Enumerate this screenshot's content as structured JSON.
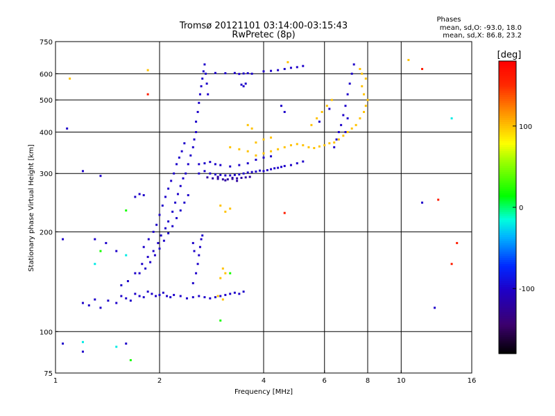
{
  "chart_data": {
    "type": "scatter",
    "title": "Tromsø 20121101 03:14:00-03:15:43",
    "subtitle": "RwPretec (8p)",
    "stats": {
      "heading": "Phases",
      "line_o": "mean, sd,O: -93.0, 18.0",
      "line_x": "mean, sd,X:  86.8, 23.2"
    },
    "xlabel": "Frequency [MHz]",
    "ylabel": "Stationary phase Virtual Height [km]",
    "x_scale": "log",
    "y_scale": "log",
    "xlim": [
      1,
      16
    ],
    "ylim": [
      75,
      750
    ],
    "x_ticks": [
      1,
      2,
      4,
      6,
      8,
      10,
      16
    ],
    "x_tick_labels": [
      "1",
      "2",
      "4",
      "6",
      "8",
      "10",
      "16"
    ],
    "y_ticks": [
      75,
      100,
      200,
      300,
      400,
      500,
      600,
      750
    ],
    "y_tick_labels": [
      "75",
      "100",
      "200",
      "300",
      "400",
      "500",
      "600",
      "750"
    ],
    "grid": true,
    "colorbar": {
      "label": "[deg]",
      "range": [
        -180,
        180
      ],
      "ticks": [
        100,
        0,
        -100
      ],
      "tick_labels": [
        "100",
        "0",
        "-100"
      ]
    },
    "series": [
      {
        "color_value": -100,
        "points": [
          [
            1.2,
            122
          ],
          [
            1.25,
            120
          ],
          [
            1.3,
            125
          ],
          [
            1.35,
            118
          ],
          [
            1.42,
            124
          ],
          [
            1.5,
            122
          ],
          [
            1.55,
            128
          ],
          [
            1.6,
            126
          ],
          [
            1.65,
            124
          ],
          [
            1.7,
            130
          ],
          [
            1.75,
            128
          ],
          [
            1.8,
            127
          ],
          [
            1.85,
            132
          ],
          [
            1.9,
            130
          ],
          [
            1.95,
            128
          ],
          [
            2.0,
            129
          ],
          [
            2.05,
            131
          ],
          [
            2.1,
            128
          ],
          [
            2.15,
            127
          ],
          [
            2.2,
            129
          ],
          [
            1.55,
            138
          ],
          [
            1.62,
            142
          ],
          [
            1.7,
            150
          ],
          [
            1.78,
            160
          ],
          [
            1.85,
            168
          ],
          [
            1.92,
            175
          ],
          [
            1.98,
            185
          ],
          [
            2.02,
            195
          ],
          [
            2.08,
            205
          ],
          [
            2.12,
            215
          ],
          [
            2.18,
            230
          ],
          [
            2.22,
            245
          ],
          [
            2.26,
            260
          ],
          [
            2.3,
            275
          ],
          [
            2.34,
            290
          ],
          [
            2.38,
            300
          ],
          [
            2.42,
            320
          ],
          [
            2.46,
            340
          ],
          [
            2.5,
            360
          ],
          [
            2.52,
            380
          ],
          [
            2.55,
            400
          ],
          [
            2.55,
            430
          ],
          [
            2.58,
            460
          ],
          [
            2.6,
            490
          ],
          [
            2.62,
            520
          ],
          [
            2.64,
            550
          ],
          [
            2.66,
            580
          ],
          [
            2.68,
            610
          ],
          [
            2.7,
            640
          ],
          [
            2.72,
            600
          ],
          [
            2.74,
            560
          ],
          [
            2.76,
            520
          ],
          [
            1.8,
            180
          ],
          [
            1.86,
            190
          ],
          [
            1.92,
            200
          ],
          [
            1.96,
            210
          ],
          [
            2.0,
            225
          ],
          [
            2.04,
            240
          ],
          [
            2.08,
            255
          ],
          [
            2.12,
            270
          ],
          [
            2.16,
            285
          ],
          [
            2.2,
            300
          ],
          [
            2.24,
            320
          ],
          [
            2.28,
            335
          ],
          [
            2.32,
            350
          ],
          [
            2.36,
            370
          ],
          [
            1.75,
            150
          ],
          [
            1.82,
            155
          ],
          [
            1.88,
            162
          ],
          [
            1.94,
            170
          ],
          [
            2.0,
            178
          ],
          [
            2.06,
            188
          ],
          [
            2.12,
            198
          ],
          [
            2.18,
            208
          ],
          [
            2.24,
            220
          ],
          [
            2.3,
            232
          ],
          [
            2.36,
            245
          ],
          [
            2.42,
            258
          ],
          [
            2.6,
            300
          ],
          [
            2.7,
            305
          ],
          [
            2.8,
            300
          ],
          [
            2.9,
            298
          ],
          [
            3.0,
            297
          ],
          [
            3.1,
            296
          ],
          [
            3.2,
            296
          ],
          [
            3.3,
            297
          ],
          [
            3.4,
            298
          ],
          [
            3.5,
            300
          ],
          [
            3.6,
            302
          ],
          [
            3.7,
            303
          ],
          [
            3.8,
            304
          ],
          [
            3.9,
            306
          ],
          [
            4.0,
            305
          ],
          [
            4.1,
            307
          ],
          [
            4.2,
            309
          ],
          [
            4.3,
            311
          ],
          [
            4.4,
            312
          ],
          [
            4.5,
            314
          ],
          [
            4.6,
            316
          ],
          [
            4.8,
            318
          ],
          [
            5.0,
            322
          ],
          [
            5.2,
            326
          ],
          [
            2.6,
            320
          ],
          [
            2.7,
            322
          ],
          [
            2.8,
            325
          ],
          [
            2.9,
            320
          ],
          [
            3.0,
            318
          ],
          [
            3.2,
            315
          ],
          [
            3.4,
            318
          ],
          [
            3.6,
            322
          ],
          [
            3.8,
            330
          ],
          [
            4.0,
            335
          ],
          [
            4.2,
            338
          ],
          [
            2.3,
            128
          ],
          [
            2.4,
            126
          ],
          [
            2.5,
            127
          ],
          [
            2.6,
            128
          ],
          [
            2.7,
            127
          ],
          [
            2.8,
            126
          ],
          [
            2.9,
            127
          ],
          [
            3.0,
            128
          ],
          [
            3.1,
            129
          ],
          [
            3.2,
            130
          ],
          [
            3.3,
            131
          ],
          [
            3.4,
            130
          ],
          [
            3.5,
            132
          ],
          [
            2.5,
            140
          ],
          [
            2.55,
            150
          ],
          [
            2.58,
            160
          ],
          [
            2.6,
            170
          ],
          [
            2.62,
            180
          ],
          [
            2.64,
            190
          ],
          [
            2.66,
            195
          ],
          [
            2.5,
            185
          ],
          [
            2.52,
            175
          ],
          [
            6.4,
            360
          ],
          [
            6.5,
            380
          ],
          [
            6.6,
            400
          ],
          [
            6.7,
            420
          ],
          [
            6.8,
            450
          ],
          [
            6.9,
            480
          ],
          [
            7.0,
            520
          ],
          [
            7.1,
            560
          ],
          [
            7.2,
            600
          ],
          [
            7.3,
            640
          ],
          [
            7.0,
            440
          ],
          [
            6.9,
            400
          ],
          [
            3.7,
            600
          ],
          [
            3.6,
            602
          ],
          [
            3.5,
            601
          ],
          [
            3.4,
            599
          ],
          [
            3.3,
            603
          ],
          [
            3.1,
            602
          ],
          [
            2.9,
            603
          ],
          [
            4.0,
            610
          ],
          [
            4.2,
            612
          ],
          [
            4.4,
            615
          ],
          [
            4.6,
            620
          ],
          [
            4.8,
            625
          ],
          [
            5.0,
            628
          ],
          [
            5.2,
            633
          ],
          [
            3.5,
            550
          ],
          [
            3.55,
            560
          ],
          [
            3.45,
            556
          ],
          [
            1.3,
            190
          ],
          [
            1.4,
            185
          ],
          [
            1.5,
            175
          ],
          [
            1.7,
            255
          ],
          [
            1.75,
            260
          ],
          [
            1.8,
            258
          ],
          [
            1.05,
            92
          ],
          [
            1.2,
            87
          ],
          [
            1.6,
            92
          ],
          [
            1.08,
            410
          ],
          [
            1.05,
            190
          ],
          [
            1.35,
            295
          ],
          [
            1.2,
            305
          ],
          [
            12.5,
            118
          ],
          [
            11.5,
            245
          ],
          [
            4.5,
            480
          ],
          [
            4.6,
            460
          ],
          [
            5.8,
            430
          ],
          [
            6.2,
            470
          ]
        ]
      },
      {
        "color_value": -120,
        "points": [
          [
            2.75,
            292
          ],
          [
            2.85,
            290
          ],
          [
            2.95,
            289
          ],
          [
            3.05,
            288
          ],
          [
            3.15,
            288
          ],
          [
            3.25,
            289
          ],
          [
            3.35,
            290
          ],
          [
            3.45,
            291
          ],
          [
            3.55,
            292
          ],
          [
            3.65,
            293
          ],
          [
            3.35,
            285
          ],
          [
            3.1,
            286
          ],
          [
            2.95,
            293
          ],
          [
            3.25,
            291
          ]
        ]
      },
      {
        "color_value": 100,
        "points": [
          [
            3.8,
            340
          ],
          [
            4.0,
            345
          ],
          [
            4.2,
            350
          ],
          [
            4.4,
            355
          ],
          [
            4.6,
            360
          ],
          [
            4.8,
            365
          ],
          [
            5.0,
            368
          ],
          [
            5.2,
            365
          ],
          [
            5.4,
            360
          ],
          [
            5.6,
            358
          ],
          [
            5.8,
            362
          ],
          [
            6.0,
            365
          ],
          [
            6.2,
            370
          ],
          [
            6.4,
            372
          ],
          [
            6.6,
            380
          ],
          [
            6.8,
            390
          ],
          [
            7.0,
            400
          ],
          [
            7.2,
            410
          ],
          [
            7.4,
            420
          ],
          [
            7.6,
            440
          ],
          [
            7.8,
            460
          ],
          [
            7.9,
            480
          ],
          [
            8.0,
            500
          ],
          [
            7.8,
            520
          ],
          [
            7.7,
            550
          ],
          [
            7.9,
            580
          ],
          [
            7.7,
            600
          ],
          [
            7.6,
            620
          ],
          [
            3.2,
            360
          ],
          [
            3.4,
            355
          ],
          [
            3.6,
            350
          ],
          [
            3.8,
            372
          ],
          [
            4.0,
            380
          ],
          [
            4.2,
            385
          ],
          [
            3.6,
            420
          ],
          [
            3.7,
            410
          ],
          [
            5.5,
            420
          ],
          [
            5.7,
            440
          ],
          [
            5.9,
            460
          ],
          [
            6.1,
            480
          ],
          [
            6.3,
            500
          ],
          [
            3.0,
            145
          ],
          [
            3.1,
            150
          ],
          [
            3.05,
            155
          ],
          [
            3.0,
            240
          ],
          [
            3.1,
            230
          ],
          [
            3.2,
            235
          ],
          [
            3.05,
            125
          ],
          [
            2.95,
            128
          ],
          [
            1.85,
            615
          ],
          [
            1.1,
            580
          ],
          [
            4.7,
            650
          ],
          [
            10.5,
            660
          ]
        ]
      },
      {
        "color_value": 20,
        "points": [
          [
            1.6,
            232
          ],
          [
            1.35,
            175
          ],
          [
            1.65,
            82
          ],
          [
            3.0,
            108
          ],
          [
            3.2,
            150
          ]
        ]
      },
      {
        "color_value": 160,
        "points": [
          [
            11.5,
            620
          ],
          [
            14.0,
            160
          ],
          [
            4.6,
            228
          ],
          [
            12.8,
            250
          ],
          [
            1.85,
            520
          ],
          [
            14.5,
            185
          ]
        ]
      },
      {
        "color_value": -20,
        "points": [
          [
            1.5,
            90
          ],
          [
            1.2,
            93
          ],
          [
            1.3,
            160
          ],
          [
            1.6,
            170
          ],
          [
            14.0,
            440
          ]
        ]
      }
    ]
  }
}
